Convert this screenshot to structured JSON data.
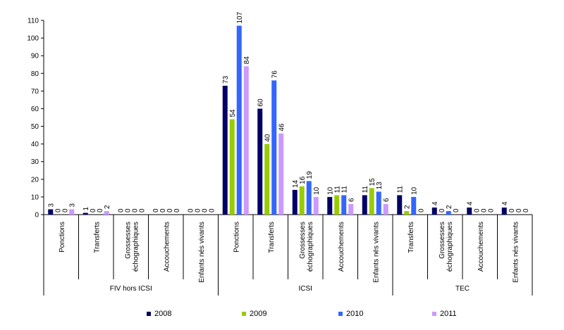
{
  "chart_data": {
    "type": "bar",
    "title": "",
    "xlabel": "",
    "ylabel": "",
    "ylim": [
      0,
      110
    ],
    "yticks": [
      0,
      10,
      20,
      30,
      40,
      50,
      60,
      70,
      80,
      90,
      100,
      110
    ],
    "grid": false,
    "legend_position": "bottom",
    "groups": [
      {
        "name": "FIV hors ICSI",
        "categories": [
          "Ponctions",
          "Transferts",
          "Grossesses échographiques",
          "Accouchements",
          "Enfants nés vivants"
        ]
      },
      {
        "name": "ICSI",
        "categories": [
          "Ponctions",
          "Transferts",
          "Grossesses échographiques",
          "Accouchements",
          "Enfants nés vivants"
        ]
      },
      {
        "name": "TEC",
        "categories": [
          "Transferts",
          "Grossesses échographiques",
          "Accouchements",
          "Enfants nés vivants"
        ]
      }
    ],
    "series": [
      {
        "name": "2008",
        "color": "#000066",
        "values": [
          3,
          1,
          0,
          0,
          0,
          73,
          60,
          14,
          10,
          11,
          11,
          4,
          4,
          4
        ]
      },
      {
        "name": "2009",
        "color": "#99cc00",
        "values": [
          0,
          0,
          0,
          0,
          0,
          54,
          40,
          16,
          11,
          15,
          2,
          0,
          0,
          0
        ]
      },
      {
        "name": "2010",
        "color": "#3366ff",
        "values": [
          0,
          0,
          0,
          0,
          0,
          107,
          76,
          19,
          11,
          13,
          10,
          2,
          0,
          0
        ]
      },
      {
        "name": "2011",
        "color": "#cc99ff",
        "values": [
          3,
          2,
          0,
          0,
          0,
          84,
          46,
          10,
          6,
          6,
          0,
          0,
          0,
          0
        ]
      }
    ]
  }
}
